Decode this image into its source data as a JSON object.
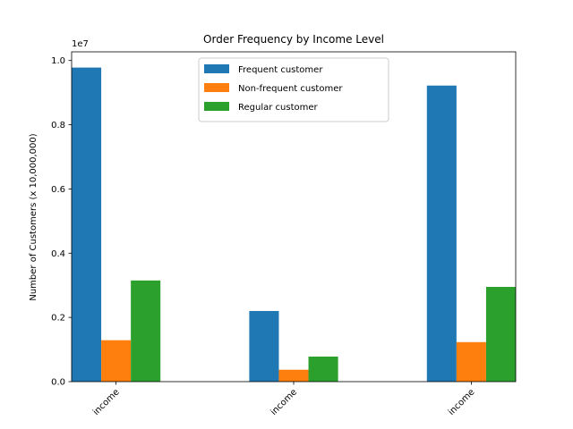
{
  "chart_data": {
    "type": "bar",
    "title": "Order Frequency by Income Level",
    "xlabel": "",
    "ylabel": "Number of Customers (x 10,000,000)",
    "offset_label": "1e7",
    "categories": [
      "income",
      "income",
      "income"
    ],
    "series": [
      {
        "name": "Frequent customer",
        "color": "#1f77b4",
        "values": [
          9780000,
          2200000,
          9220000
        ]
      },
      {
        "name": "Non-frequent customer",
        "color": "#ff7f0e",
        "values": [
          1290000,
          370000,
          1230000
        ]
      },
      {
        "name": "Regular customer",
        "color": "#2ca02c",
        "values": [
          3150000,
          780000,
          2950000
        ]
      }
    ],
    "ylim": [
      0,
      10270000
    ],
    "yticks": [
      0,
      2000000,
      4000000,
      6000000,
      8000000,
      10000000
    ],
    "ytick_labels": [
      "0.0",
      "0.2",
      "0.4",
      "0.6",
      "0.8",
      "1.0"
    ],
    "xtick_rotation_deg": 45,
    "legend_position": "top-center",
    "grid": false
  }
}
